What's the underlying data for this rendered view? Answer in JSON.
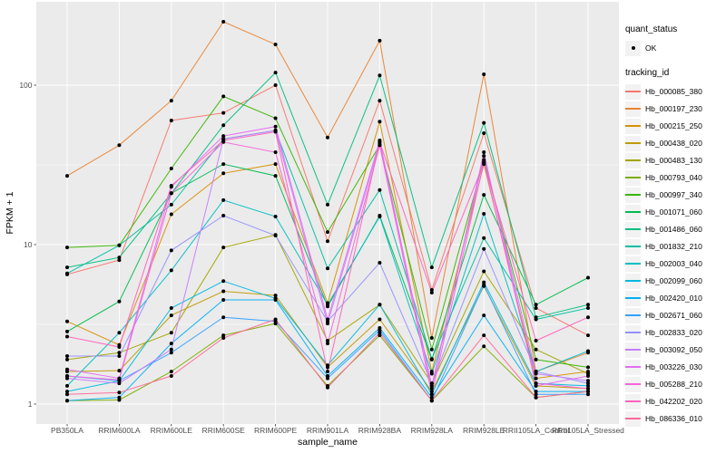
{
  "chart_data": {
    "type": "line",
    "title": "",
    "xlabel": "sample_name",
    "ylabel": "FPKM + 1",
    "y_scale": "log10",
    "y_tick_labels": [
      "1",
      "10",
      "100"
    ],
    "y_tick_values": [
      1,
      10,
      100
    ],
    "y_minor_values": [
      3.1623,
      31.623
    ],
    "x_categories": [
      "PB350LA",
      "RRIM600LA",
      "RRIM600LE",
      "RRIM600SE",
      "RRIM600PE",
      "RRIM901LA",
      "RRIM928BA",
      "RRIM928LA",
      "RRIM928LE",
      "RRII105LA_Control",
      "RRII105LA_Stressed"
    ],
    "legend": {
      "quant_status_title": "quant_status",
      "quant_status_items": [
        "OK"
      ],
      "tracking_id_title": "tracking_id"
    },
    "style": {
      "panel_bg": "#EBEBEB",
      "grid": "#FFFFFF",
      "point": "#000000",
      "tick_label": "#4D4D4D",
      "axis_title": "#000000",
      "legend_key_bg": "#F2F2F2",
      "background": "#FFFFFF"
    },
    "series": [
      {
        "name": "Hb_000085_380",
        "color": "#F8766D",
        "values": [
          6.5,
          8.0,
          60,
          67,
          100,
          10.5,
          80,
          5.2,
          50,
          4.0,
          2.7
        ]
      },
      {
        "name": "Hb_000197_230",
        "color": "#EA8331",
        "values": [
          27,
          42,
          80,
          250,
          180,
          47,
          190,
          2.6,
          117,
          1.6,
          2.1
        ]
      },
      {
        "name": "Hb_000215_250",
        "color": "#D89000",
        "values": [
          3.3,
          2.35,
          15.5,
          28,
          32,
          4.3,
          59,
          1.6,
          32,
          1.45,
          1.6
        ]
      },
      {
        "name": "Hb_000438_020",
        "color": "#C09B00",
        "values": [
          1.6,
          1.62,
          3.6,
          5.1,
          4.8,
          1.7,
          3.4,
          1.2,
          5.5,
          1.3,
          1.25
        ]
      },
      {
        "name": "Hb_000483_130",
        "color": "#A3A500",
        "values": [
          1.9,
          2.1,
          2.8,
          9.6,
          11.5,
          2.5,
          4.2,
          1.35,
          6.8,
          2.2,
          1.55
        ]
      },
      {
        "name": "Hb_000793_040",
        "color": "#7CAE00",
        "values": [
          1.05,
          1.06,
          1.6,
          2.7,
          3.2,
          1.3,
          2.7,
          1.05,
          2.3,
          1.1,
          1.2
        ]
      },
      {
        "name": "Hb_000997_340",
        "color": "#39B600",
        "values": [
          9.6,
          9.9,
          30,
          85,
          62,
          12,
          42,
          2.2,
          34,
          1.9,
          1.7
        ]
      },
      {
        "name": "Hb_001071_060",
        "color": "#00BB4E",
        "values": [
          2.85,
          4.4,
          21,
          32,
          27,
          4.1,
          15.2,
          1.9,
          20.5,
          4.2,
          6.2
        ]
      },
      {
        "name": "Hb_001486_060",
        "color": "#00BF7D",
        "values": [
          7.2,
          8.3,
          21,
          56,
          120,
          17.8,
          115,
          7.2,
          58,
          3.5,
          4.2
        ]
      },
      {
        "name": "Hb_001832_210",
        "color": "#00C1A3",
        "values": [
          6.6,
          9.9,
          17.8,
          46,
          52,
          7.1,
          22,
          1.92,
          11,
          3.4,
          4.0
        ]
      },
      {
        "name": "Hb_002003_040",
        "color": "#00BFC4",
        "values": [
          1.3,
          2.8,
          6.9,
          19,
          15,
          4.2,
          15,
          1.55,
          15.6,
          1.6,
          2.15
        ]
      },
      {
        "name": "Hb_002099_060",
        "color": "#00BAE0",
        "values": [
          1.2,
          1.4,
          4.0,
          5.9,
          4.6,
          1.75,
          4.2,
          1.15,
          5.8,
          1.35,
          1.3
        ]
      },
      {
        "name": "Hb_002420_010",
        "color": "#00B0F6",
        "values": [
          1.05,
          1.1,
          2.4,
          4.5,
          4.5,
          1.5,
          3.0,
          1.1,
          3.6,
          1.2,
          1.2
        ]
      },
      {
        "name": "Hb_002671_060",
        "color": "#35A2FF",
        "values": [
          1.5,
          1.4,
          2.1,
          3.5,
          3.3,
          1.45,
          2.9,
          1.05,
          5.6,
          1.15,
          1.15
        ]
      },
      {
        "name": "Hb_002833_020",
        "color": "#9590FF",
        "values": [
          2.0,
          2.0,
          9.2,
          15.2,
          11.4,
          3.3,
          7.7,
          1.35,
          9.4,
          1.6,
          1.35
        ]
      },
      {
        "name": "Hb_003092_050",
        "color": "#C77CFF",
        "values": [
          1.45,
          1.35,
          2.2,
          46,
          52,
          3.2,
          43,
          1.3,
          36,
          1.55,
          1.4
        ]
      },
      {
        "name": "Hb_003226_030",
        "color": "#E76BF3",
        "values": [
          1.65,
          1.45,
          23,
          48,
          55,
          3.4,
          45,
          1.25,
          38,
          1.3,
          1.5
        ]
      },
      {
        "name": "Hb_005288_210",
        "color": "#FA62DB",
        "values": [
          1.5,
          1.42,
          21,
          44,
          38,
          2.4,
          42,
          1.15,
          33,
          1.35,
          1.25
        ]
      },
      {
        "name": "Hb_042202_020",
        "color": "#FF62BC",
        "values": [
          2.65,
          2.28,
          23.4,
          45,
          51,
          1.6,
          44,
          5.0,
          32.5,
          2.5,
          3.5
        ]
      },
      {
        "name": "Hb_086336_010",
        "color": "#FF6A98",
        "values": [
          1.15,
          1.18,
          1.5,
          2.6,
          3.4,
          1.27,
          2.8,
          1.05,
          2.7,
          1.1,
          1.2
        ]
      }
    ]
  }
}
